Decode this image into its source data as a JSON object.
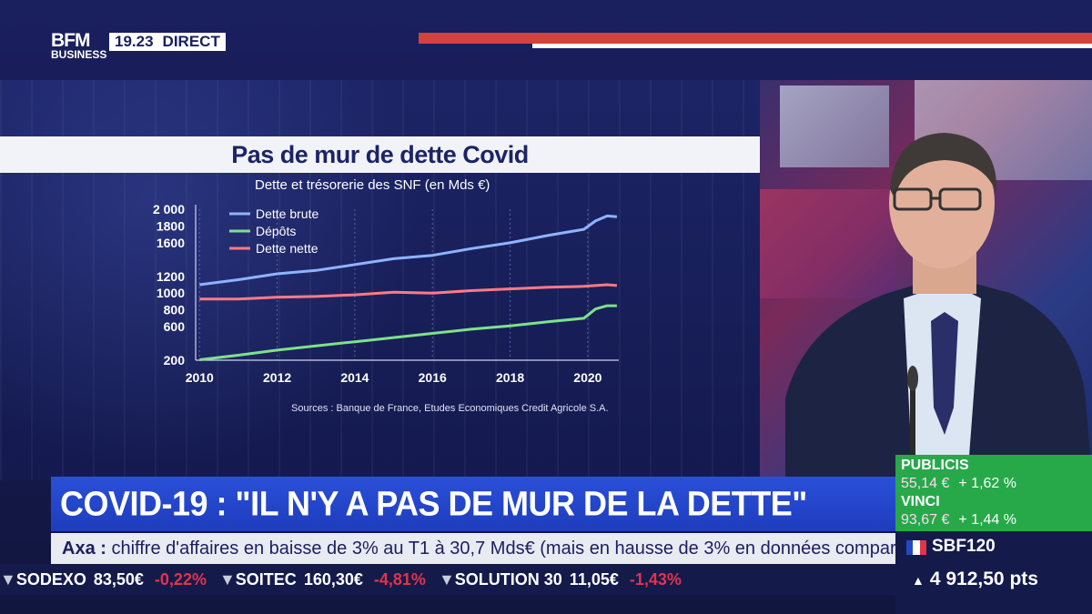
{
  "broadcast": {
    "logo_line1": "BFM",
    "logo_line2": "BUSINESS",
    "time": "19.23",
    "live_label": "DIRECT"
  },
  "headline": "COVID-19 : \"IL N'Y A PAS DE MUR DE LA DETTE\"",
  "news_ticker": {
    "company": "Axa :",
    "text": "chiffre d'affaires en baisse de 3% au T1 à 30,7 Mds€ (mais en hausse de 3% en données comparables)."
  },
  "stock_strip": [
    {
      "name": "SODEXO",
      "price": "83,50€",
      "change": "-0,22%"
    },
    {
      "name": "SOITEC",
      "price": "160,30€",
      "change": "-4,81%"
    },
    {
      "name": "SOLUTION 30",
      "price": "11,05€",
      "change": "-1,43%"
    }
  ],
  "highlight_stocks": [
    {
      "name": "PUBLICIS",
      "price": "55,14 €",
      "change": "+ 1,62 %"
    },
    {
      "name": "VINCI",
      "price": "93,67 €",
      "change": "+ 1,44 %"
    }
  ],
  "index": {
    "name": "SBF120",
    "value": "4 912,50 pts",
    "flag_colors": [
      "#2447c8",
      "#ffffff",
      "#e0344b"
    ]
  },
  "colors": {
    "brand_blue": "#1e3dbd",
    "accent_red": "#d5423b",
    "positive_green": "#27a94a",
    "negative_red": "#e0344b"
  },
  "chart_data": {
    "type": "line",
    "title": "Pas de mur de dette Covid",
    "subtitle": "Dette et trésorerie des SNF (en Mds €)",
    "source": "Sources : Banque de France, Etudes Economiques Credit Agricole S.A.",
    "xlim": [
      2009.9,
      2020.8
    ],
    "ylim": [
      200,
      2000
    ],
    "x_ticks": [
      2010,
      2012,
      2014,
      2016,
      2018,
      2020
    ],
    "x_tick_labels": [
      "2010",
      "2012",
      "2014",
      "2016",
      "2018",
      "2020"
    ],
    "y_ticks": [
      200,
      600,
      800,
      1000,
      1200,
      1600,
      1800,
      2000
    ],
    "y_tick_labels": [
      "200",
      "600",
      "800",
      "1000",
      "1200",
      "1600",
      "1800",
      "2 000"
    ],
    "legend_position": "top-left",
    "grid": "vertical",
    "series": [
      {
        "name": "Dette brute",
        "color": "#8fb3ff",
        "x": [
          2010,
          2011,
          2012,
          2013,
          2014,
          2015,
          2016,
          2017,
          2018,
          2019,
          2019.9,
          2020.2,
          2020.5,
          2020.75
        ],
        "y": [
          1100,
          1160,
          1230,
          1270,
          1340,
          1410,
          1450,
          1530,
          1600,
          1690,
          1760,
          1860,
          1920,
          1910
        ]
      },
      {
        "name": "Dépôts",
        "color": "#7de28a",
        "x": [
          2010,
          2011,
          2012,
          2013,
          2014,
          2015,
          2016,
          2017,
          2018,
          2019,
          2019.9,
          2020.2,
          2020.5,
          2020.75
        ],
        "y": [
          205,
          260,
          320,
          370,
          420,
          470,
          520,
          570,
          610,
          660,
          700,
          810,
          850,
          850
        ]
      },
      {
        "name": "Dette nette",
        "color": "#ff7a86",
        "x": [
          2010,
          2011,
          2012,
          2013,
          2014,
          2015,
          2016,
          2017,
          2018,
          2019,
          2019.9,
          2020.2,
          2020.5,
          2020.75
        ],
        "y": [
          930,
          930,
          950,
          960,
          980,
          1010,
          1000,
          1030,
          1050,
          1070,
          1080,
          1090,
          1100,
          1090
        ]
      }
    ]
  }
}
